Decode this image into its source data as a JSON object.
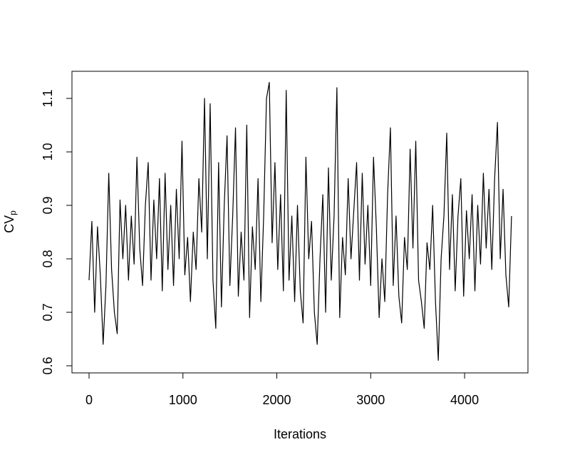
{
  "chart_data": {
    "type": "line",
    "xlabel": "Iterations",
    "ylabel": "CV",
    "ylabel_sub": "p",
    "xlim": [
      -182,
      4675
    ],
    "ylim": [
      0.5867,
      1.1507
    ],
    "xticks": [
      0,
      1000,
      2000,
      3000,
      4000
    ],
    "yticks": [
      0.6,
      0.7,
      0.8,
      0.9,
      {
        "value": 1.0,
        "label": "1.0"
      },
      1.1
    ],
    "series": [
      {
        "color": "#000000",
        "x": [
          0,
          30,
          60,
          90,
          120,
          150,
          180,
          210,
          240,
          270,
          300,
          330,
          360,
          390,
          420,
          450,
          480,
          510,
          540,
          570,
          600,
          630,
          660,
          690,
          720,
          750,
          780,
          810,
          840,
          870,
          900,
          930,
          960,
          990,
          1020,
          1050,
          1080,
          1110,
          1140,
          1170,
          1200,
          1230,
          1260,
          1290,
          1320,
          1350,
          1380,
          1410,
          1440,
          1470,
          1500,
          1530,
          1560,
          1590,
          1620,
          1650,
          1680,
          1710,
          1740,
          1770,
          1800,
          1830,
          1860,
          1890,
          1920,
          1950,
          1980,
          2010,
          2040,
          2070,
          2100,
          2130,
          2160,
          2190,
          2220,
          2250,
          2280,
          2310,
          2340,
          2370,
          2400,
          2430,
          2460,
          2490,
          2520,
          2550,
          2580,
          2610,
          2640,
          2670,
          2700,
          2730,
          2760,
          2790,
          2820,
          2850,
          2880,
          2910,
          2940,
          2970,
          3000,
          3030,
          3060,
          3090,
          3120,
          3150,
          3180,
          3210,
          3240,
          3270,
          3300,
          3330,
          3360,
          3390,
          3420,
          3450,
          3480,
          3510,
          3540,
          3570,
          3600,
          3630,
          3660,
          3690,
          3720,
          3750,
          3780,
          3810,
          3840,
          3870,
          3900,
          3930,
          3960,
          3990,
          4020,
          4050,
          4080,
          4110,
          4140,
          4170,
          4200,
          4230,
          4260,
          4290,
          4320,
          4350,
          4380,
          4410,
          4440,
          4470,
          4500
        ],
        "values": [
          0.76,
          0.87,
          0.7,
          0.86,
          0.77,
          0.64,
          0.75,
          0.96,
          0.78,
          0.7,
          0.66,
          0.91,
          0.8,
          0.9,
          0.76,
          0.88,
          0.79,
          0.99,
          0.82,
          0.75,
          0.9,
          0.98,
          0.76,
          0.91,
          0.8,
          0.95,
          0.74,
          0.96,
          0.78,
          0.9,
          0.75,
          0.93,
          0.8,
          1.02,
          0.77,
          0.84,
          0.72,
          0.85,
          0.78,
          0.95,
          0.85,
          1.1,
          0.8,
          1.09,
          0.76,
          0.67,
          0.98,
          0.71,
          0.9,
          1.03,
          0.75,
          0.88,
          1.045,
          0.73,
          0.85,
          0.76,
          1.05,
          0.69,
          0.86,
          0.78,
          0.95,
          0.72,
          0.88,
          1.1,
          1.13,
          0.83,
          0.98,
          0.78,
          0.92,
          0.74,
          1.115,
          0.76,
          0.88,
          0.72,
          0.9,
          0.74,
          0.68,
          0.99,
          0.8,
          0.87,
          0.7,
          0.64,
          0.8,
          0.92,
          0.7,
          0.97,
          0.76,
          0.88,
          1.12,
          0.69,
          0.84,
          0.77,
          0.95,
          0.8,
          0.89,
          0.98,
          0.76,
          0.96,
          0.79,
          0.9,
          0.75,
          0.99,
          0.86,
          0.69,
          0.8,
          0.72,
          0.92,
          1.045,
          0.75,
          0.88,
          0.73,
          0.68,
          0.84,
          0.78,
          1.005,
          0.82,
          1.02,
          0.76,
          0.72,
          0.67,
          0.83,
          0.78,
          0.9,
          0.72,
          0.61,
          0.8,
          0.88,
          1.035,
          0.78,
          0.92,
          0.74,
          0.88,
          0.95,
          0.73,
          0.89,
          0.8,
          0.92,
          0.74,
          0.9,
          0.79,
          0.96,
          0.82,
          0.93,
          0.78,
          0.95,
          1.055,
          0.8,
          0.93,
          0.77,
          0.71,
          0.88
        ]
      }
    ]
  }
}
